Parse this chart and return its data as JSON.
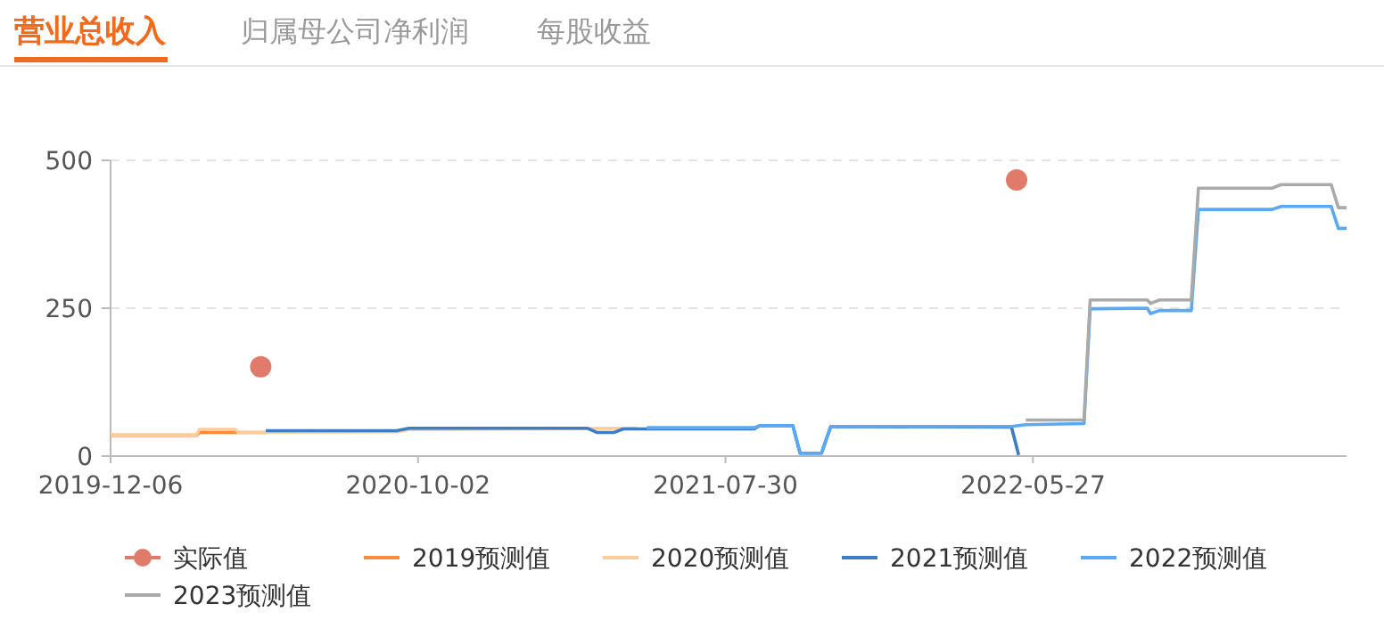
{
  "chart_data": {
    "type": "line",
    "title": "营业总收入",
    "annotations": [
      "归属母公司净利润",
      "每股收益"
    ],
    "xlim": [
      "2019-12-06",
      "2023-03-30"
    ],
    "xticks": [
      "2019-12-06",
      "2020-10-02",
      "2021-07-30",
      "2022-05-27"
    ],
    "ylim": [
      0,
      500
    ],
    "yticks": [
      0,
      250,
      500
    ],
    "grid": "y",
    "legend": "bottom",
    "marker": "none",
    "line_style": "solid",
    "series": [
      {
        "name": "实际值",
        "type": "scatter",
        "marker": "circle",
        "color": "#e07b6b",
        "x": [
          "2020-05-01",
          "2022-05-11"
        ],
        "values": [
          151,
          467
        ]
      },
      {
        "name": "2019预测值",
        "color": "#fa8a3c",
        "x": [
          "2019-12-06",
          "2020-02-28",
          "2020-03-02",
          "2020-05-06"
        ],
        "values": [
          35,
          35,
          40,
          40
        ]
      },
      {
        "name": "2020预测值",
        "color": "#ffcc99",
        "x": [
          "2019-12-06",
          "2020-02-28",
          "2020-03-02",
          "2020-04-06",
          "2020-04-09",
          "2020-09-11",
          "2020-09-23",
          "2021-05-05"
        ],
        "values": [
          36,
          36,
          45,
          45,
          40,
          41,
          45,
          47
        ]
      },
      {
        "name": "2021预测值",
        "color": "#3b7dc6",
        "x": [
          "2020-05-06",
          "2020-09-11",
          "2020-09-23",
          "2021-03-17",
          "2021-03-26",
          "2021-04-12",
          "2021-04-21",
          "2021-08-27",
          "2021-09-01",
          "2021-10-04",
          "2021-10-11",
          "2021-11-01",
          "2021-11-10",
          "2022-05-06",
          "2022-05-13"
        ],
        "values": [
          43,
          43,
          47,
          47,
          40,
          40,
          46,
          46,
          51,
          51,
          5,
          5,
          50,
          49,
          2
        ]
      },
      {
        "name": "2022预测值",
        "color": "#5ba8f5",
        "x": [
          "2021-05-14",
          "2021-08-27",
          "2021-09-01",
          "2021-10-04",
          "2021-10-11",
          "2021-11-01",
          "2021-11-10",
          "2022-05-06",
          "2022-05-20",
          "2022-07-16",
          "2022-07-22",
          "2022-09-16",
          "2022-09-19",
          "2022-09-28",
          "2022-10-29",
          "2022-11-05",
          "2023-01-16",
          "2023-01-25",
          "2023-03-15",
          "2023-03-22",
          "2023-03-30"
        ],
        "values": [
          48,
          48,
          51,
          51,
          5,
          5,
          50,
          50,
          53,
          55,
          249,
          250,
          241,
          246,
          246,
          417,
          417,
          422,
          422,
          385,
          385
        ]
      },
      {
        "name": "2023预测值",
        "color": "#aaaaaa",
        "x": [
          "2022-05-20",
          "2022-07-16",
          "2022-07-22",
          "2022-09-16",
          "2022-09-19",
          "2022-09-28",
          "2022-10-29",
          "2022-11-05",
          "2023-01-16",
          "2023-01-25",
          "2023-03-15",
          "2023-03-22",
          "2023-03-30"
        ],
        "values": [
          61,
          61,
          264,
          264,
          258,
          264,
          264,
          453,
          453,
          459,
          459,
          420,
          420
        ]
      }
    ]
  }
}
